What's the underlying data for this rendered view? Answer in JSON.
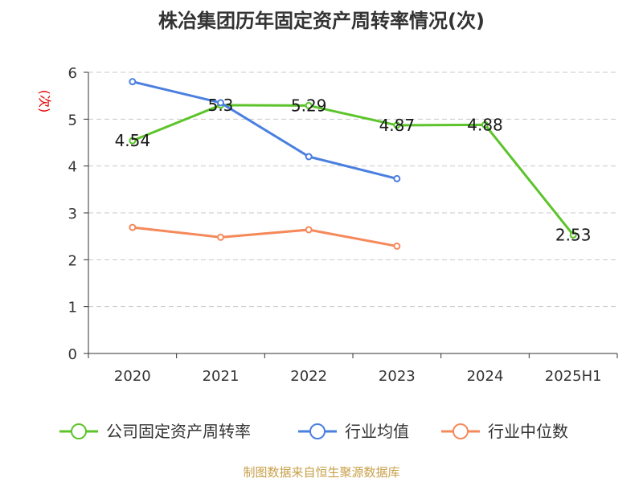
{
  "chart_data": {
    "type": "line",
    "title": "株冶集团历年固定资产周转率情况(次)",
    "ylabel": "(次)",
    "categories": [
      "2020",
      "2021",
      "2022",
      "2023",
      "2024",
      "2025H1"
    ],
    "ylim": [
      0,
      6
    ],
    "yticks": [
      0,
      1,
      2,
      3,
      4,
      5,
      6
    ],
    "grid": true,
    "legend_position": "bottom",
    "series": [
      {
        "name": "公司固定资产周转率",
        "color": "#5cc42a",
        "values": [
          4.54,
          5.3,
          5.29,
          4.87,
          4.88,
          2.53
        ],
        "labels": [
          "4.54",
          "5.3",
          "5.29",
          "4.87",
          "4.88",
          "2.53"
        ],
        "show_labels": true
      },
      {
        "name": "行业均值",
        "color": "#4a7fe0",
        "values": [
          5.8,
          5.35,
          4.2,
          3.73,
          null,
          null
        ],
        "show_labels": false
      },
      {
        "name": "行业中位数",
        "color": "#f5895a",
        "values": [
          2.69,
          2.48,
          2.64,
          2.29,
          null,
          null
        ],
        "show_labels": false
      }
    ]
  },
  "source": "制图数据来自恒生聚源数据库"
}
